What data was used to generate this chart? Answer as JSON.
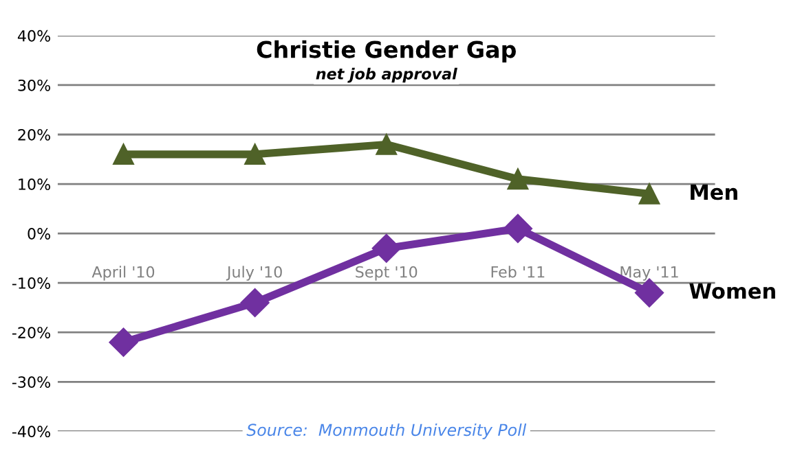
{
  "chart_data": {
    "type": "line",
    "title": "Christie Gender Gap",
    "subtitle": "net job approval",
    "categories": [
      "April '10",
      "July '10",
      "Sept '10",
      "Feb '11",
      "May '11"
    ],
    "series": [
      {
        "name": "Men",
        "color": "#4f6228",
        "marker": "triangle",
        "values": [
          16,
          16,
          18,
          11,
          8
        ]
      },
      {
        "name": "Women",
        "color": "#7030a0",
        "marker": "diamond",
        "values": [
          -22,
          -14,
          -3,
          1,
          -12
        ]
      }
    ],
    "ylim": [
      -40,
      40
    ],
    "yticks": [
      {
        "value": -40,
        "label": "-40%"
      },
      {
        "value": -30,
        "label": "-30%"
      },
      {
        "value": -20,
        "label": "-20%"
      },
      {
        "value": -10,
        "label": "-10%"
      },
      {
        "value": 0,
        "label": "0%"
      },
      {
        "value": 10,
        "label": "10%"
      },
      {
        "value": 20,
        "label": "20%"
      },
      {
        "value": 30,
        "label": "30%"
      },
      {
        "value": 40,
        "label": "40%"
      }
    ],
    "grid": "y",
    "legend": false,
    "annotations": [
      "Source:  Monmouth University Poll"
    ]
  }
}
